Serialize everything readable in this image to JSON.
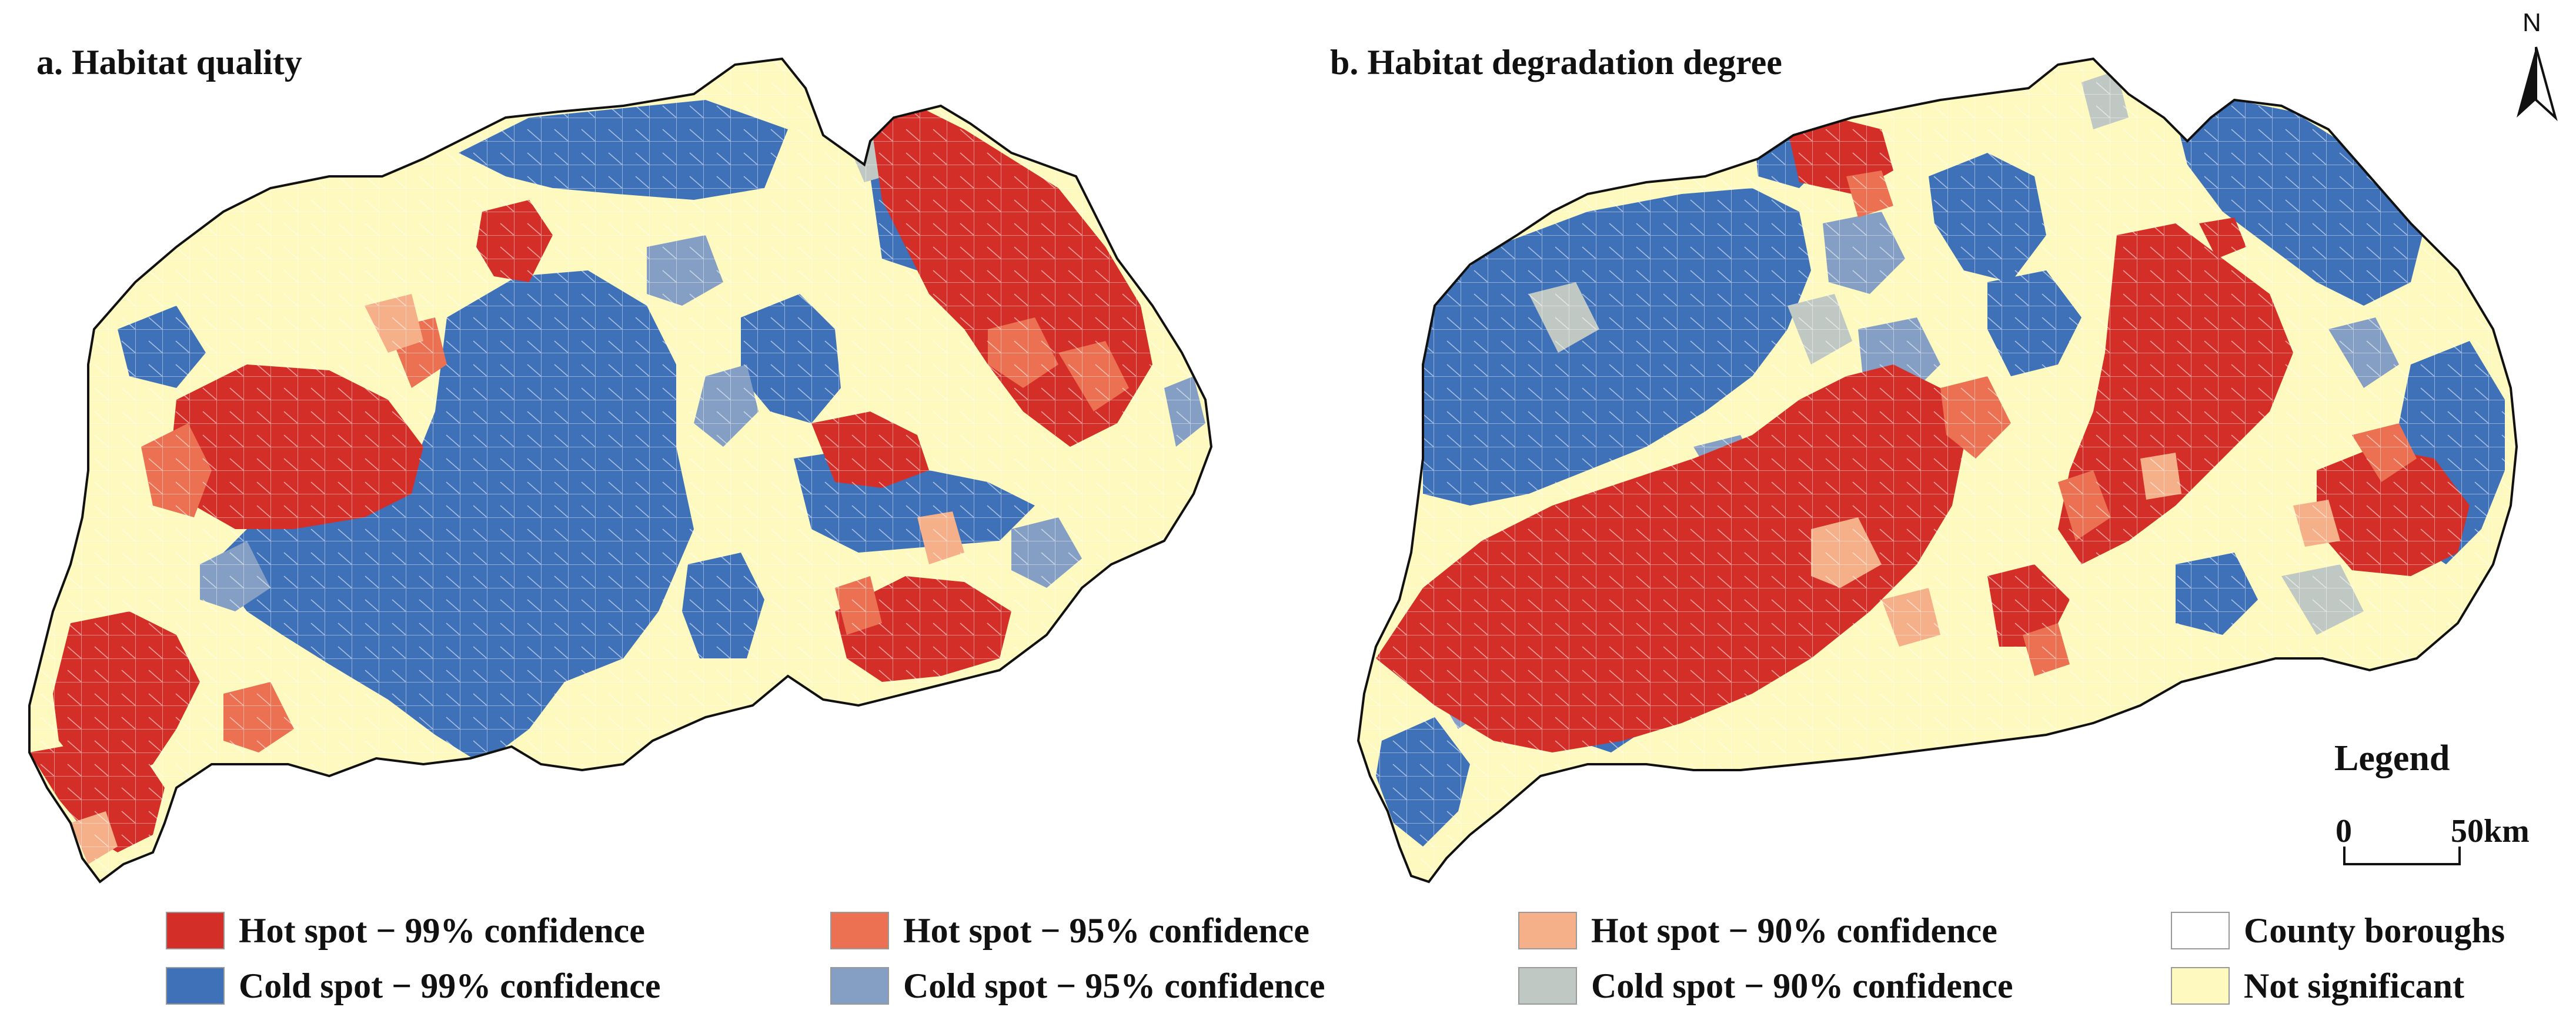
{
  "panels": {
    "a_title": "a. Habitat quality",
    "b_title": "b. Habitat degradation degree"
  },
  "north_arrow": {
    "letter": "N"
  },
  "legend": {
    "heading": "Legend",
    "scale": {
      "start": "0",
      "end": "50km"
    },
    "items": [
      {
        "label": "Hot spot − 99% confidence",
        "color": "#d42e28"
      },
      {
        "label": "Hot spot − 95% confidence",
        "color": "#eb7152"
      },
      {
        "label": "Hot spot − 90% confidence",
        "color": "#f6b089"
      },
      {
        "label": "County boroughs",
        "color": "#ffffff"
      },
      {
        "label": "Cold spot − 99% confidence",
        "color": "#3f71b8"
      },
      {
        "label": "Cold spot − 95% confidence",
        "color": "#859fc4"
      },
      {
        "label": "Cold spot − 90% confidence",
        "color": "#c0c8c4"
      },
      {
        "label": "Not significant",
        "color": "#fdf9bf"
      }
    ]
  }
}
